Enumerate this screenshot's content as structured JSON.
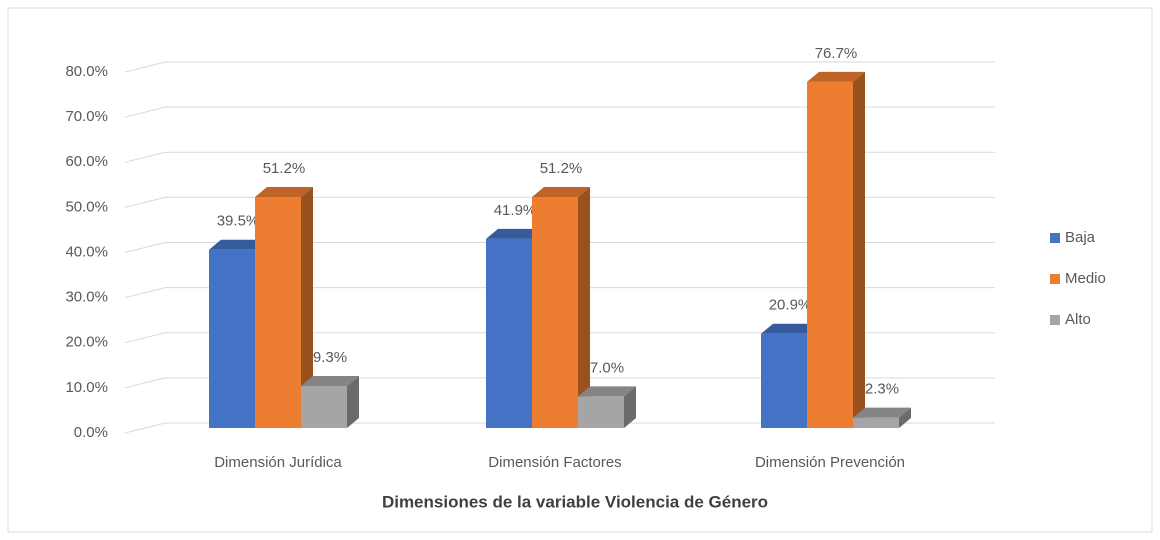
{
  "chart_data": {
    "type": "bar3d",
    "x_label": "Dimensiones de la variable Violencia de Género",
    "categories": [
      "Dimensión Jurídica",
      "Dimensión Factores",
      "Dimensión Prevención"
    ],
    "series": [
      {
        "name": "Baja",
        "color": "#4472c4",
        "values": [
          39.5,
          41.9,
          20.9
        ],
        "value_labels": [
          "39.5%",
          "41.9%",
          "20.9%"
        ]
      },
      {
        "name": "Medio",
        "color": "#ed7d31",
        "values": [
          51.2,
          51.2,
          76.7
        ],
        "value_labels": [
          "51.2%",
          "51.2%",
          "76.7%"
        ]
      },
      {
        "name": "Alto",
        "color": "#a5a5a5",
        "values": [
          9.3,
          7.0,
          2.3
        ],
        "value_labels": [
          "9.3%",
          "7.0%",
          "2.3%"
        ]
      }
    ],
    "ylim": [
      0,
      80
    ],
    "yticks": [
      {
        "value": 0,
        "label": "0.0%"
      },
      {
        "value": 10,
        "label": "10.0%"
      },
      {
        "value": 20,
        "label": "20.0%"
      },
      {
        "value": 30,
        "label": "30.0%"
      },
      {
        "value": 40,
        "label": "40.0%"
      },
      {
        "value": 50,
        "label": "50.0%"
      },
      {
        "value": 60,
        "label": "60.0%"
      },
      {
        "value": 70,
        "label": "70.0%"
      },
      {
        "value": 80,
        "label": "80.0%"
      }
    ],
    "grid": true,
    "legend": "right"
  }
}
